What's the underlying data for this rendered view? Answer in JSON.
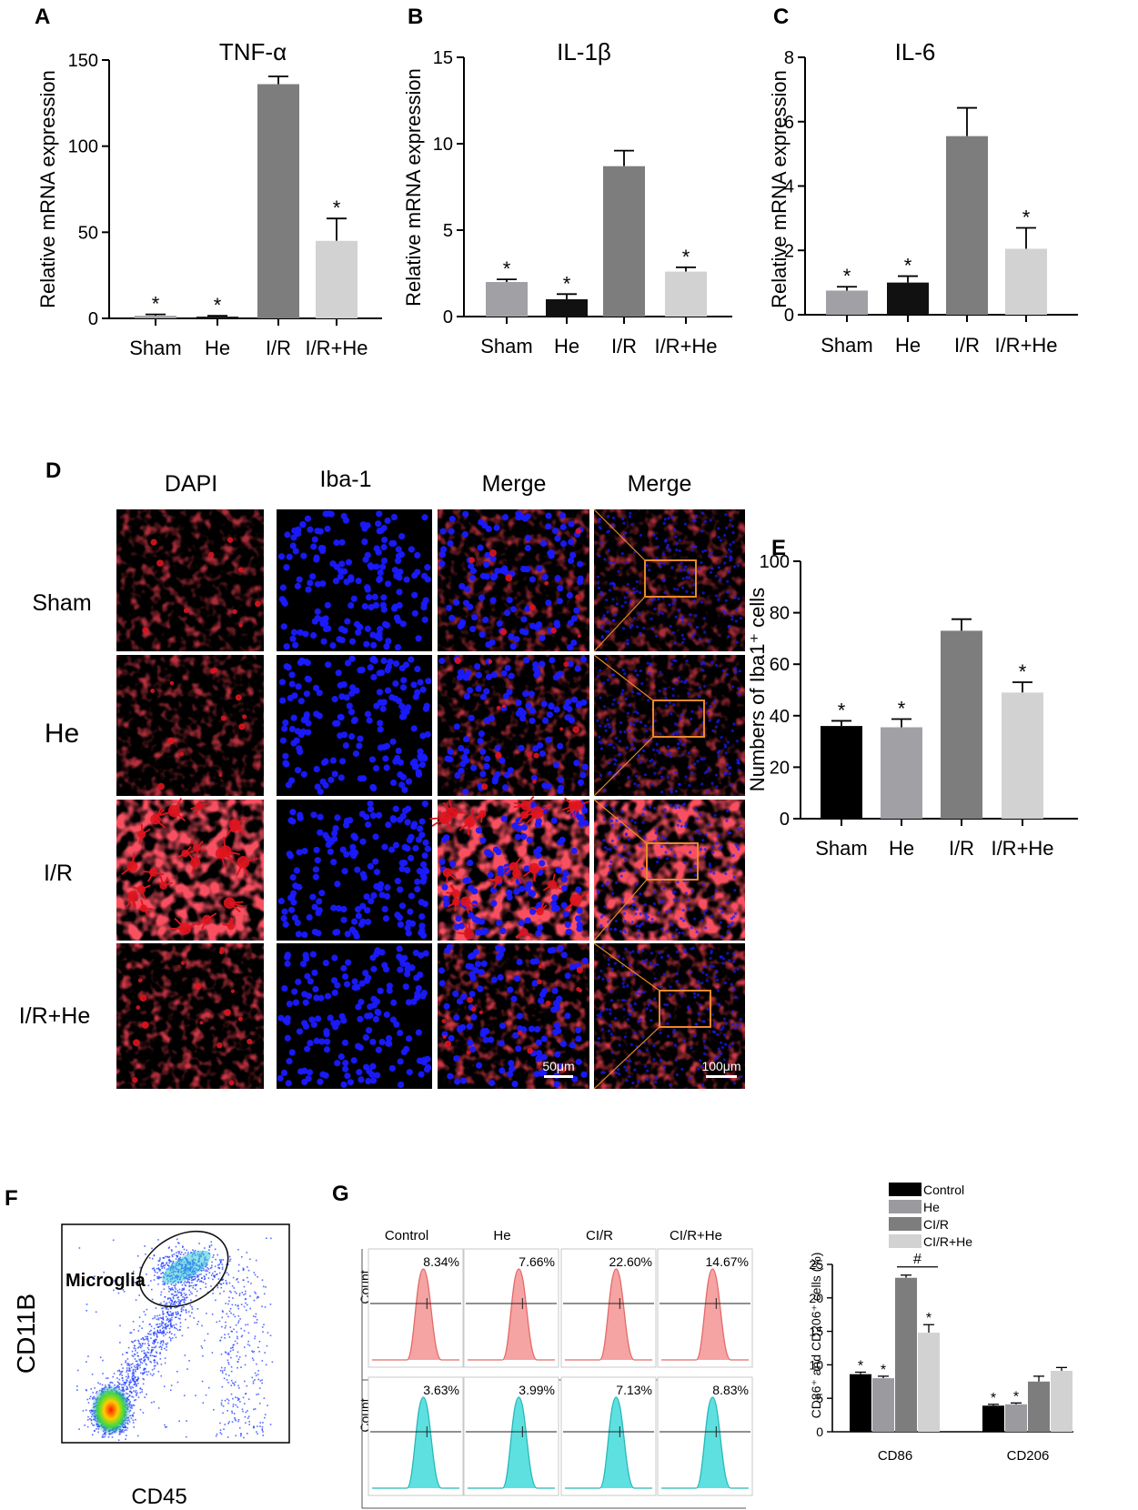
{
  "panel_letters": [
    "A",
    "B",
    "C",
    "D",
    "E",
    "F",
    "G"
  ],
  "colors": {
    "black_bar": "#000000",
    "mid_gray_bar": "#9a9a9f",
    "dark_gray_bar": "#7d7d7d",
    "light_gray_bar": "#d2d2d2",
    "micro_red": "#e0141e",
    "nucleus_blue": "#1a1aff",
    "box_orange": "#e8892b",
    "hist_pink": "#f6a3a3",
    "hist_cyan": "#5fe0e0"
  },
  "microscopy": {
    "columns": [
      "DAPI",
      "Iba-1",
      "Merge",
      "Merge"
    ],
    "rows": [
      "Sham",
      "He",
      "I/R",
      "I/R+He"
    ],
    "scalebars": [
      "50μm",
      "100μm"
    ]
  },
  "flow": {
    "gate_label": "Microglia",
    "xlabel": "CD45",
    "ylabel": "CD11B"
  },
  "histograms": {
    "groups": [
      "Control",
      "He",
      "CI/R",
      "CI/R+He"
    ],
    "ylabel": "Count",
    "rows": [
      {
        "marker": "CD86",
        "percents": [
          "8.34%",
          "7.66%",
          "22.60%",
          "14.67%"
        ]
      },
      {
        "marker": "CD206",
        "percents": [
          "3.63%",
          "3.99%",
          "7.13%",
          "8.83%"
        ]
      }
    ]
  },
  "chart_data": [
    {
      "id": "A",
      "type": "bar",
      "title": "TNF-α",
      "xlabel": "",
      "ylabel": "Relative mRNA expression",
      "categories": [
        "Sham",
        "He",
        "I/R",
        "I/R+He"
      ],
      "values": [
        1.5,
        1.0,
        136,
        45
      ],
      "errors": [
        0.8,
        0.5,
        4.5,
        13
      ],
      "colors": [
        "#a0a0a5",
        "#111111",
        "#7d7d7d",
        "#d2d2d2"
      ],
      "significance": [
        "*",
        "*",
        "",
        "*"
      ],
      "ylim": [
        0,
        150
      ],
      "yticks": [
        "0",
        "50",
        "100",
        "150"
      ]
    },
    {
      "id": "B",
      "type": "bar",
      "title": "IL-1β",
      "xlabel": "",
      "ylabel": "Relative mRNA expression",
      "categories": [
        "Sham",
        "He",
        "I/R",
        "I/R+He"
      ],
      "values": [
        2.0,
        1.0,
        8.7,
        2.6
      ],
      "errors": [
        0.15,
        0.3,
        0.9,
        0.25
      ],
      "colors": [
        "#a0a0a5",
        "#111111",
        "#7d7d7d",
        "#d2d2d2"
      ],
      "significance": [
        "*",
        "*",
        "",
        "*"
      ],
      "ylim": [
        0,
        15
      ],
      "yticks": [
        "0",
        "5",
        "10",
        "15"
      ]
    },
    {
      "id": "C",
      "type": "bar",
      "title": "IL-6",
      "xlabel": "",
      "ylabel": "Relative mRNA expression",
      "categories": [
        "Sham",
        "He",
        "I/R",
        "I/R+He"
      ],
      "values": [
        0.75,
        1.0,
        5.55,
        2.05
      ],
      "errors": [
        0.12,
        0.2,
        0.88,
        0.65
      ],
      "colors": [
        "#a0a0a5",
        "#111111",
        "#7d7d7d",
        "#d2d2d2"
      ],
      "significance": [
        "*",
        "*",
        "",
        "*"
      ],
      "ylim": [
        0,
        8
      ],
      "yticks": [
        "0",
        "2",
        "4",
        "6",
        "8"
      ]
    },
    {
      "id": "E",
      "type": "bar",
      "title": "",
      "xlabel": "",
      "ylabel": "Numbers of Iba1⁺ cells",
      "categories": [
        "Sham",
        "He",
        "I/R",
        "I/R+He"
      ],
      "values": [
        36,
        35.5,
        73,
        49
      ],
      "errors": [
        2.0,
        3.2,
        4.5,
        4.0
      ],
      "colors": [
        "#000000",
        "#a0a0a5",
        "#7d7d7d",
        "#d2d2d2"
      ],
      "significance": [
        "*",
        "*",
        "",
        "*"
      ],
      "ylim": [
        0,
        100
      ],
      "yticks": [
        "0",
        "20",
        "40",
        "60",
        "80",
        "100"
      ]
    },
    {
      "id": "G-bar",
      "type": "bar",
      "title": "",
      "xlabel": "",
      "ylabel": "CD86⁺ and CD206⁺ cells (%)",
      "categories": [
        "CD86",
        "CD206"
      ],
      "series": [
        {
          "name": "Control",
          "values": [
            8.6,
            3.9
          ],
          "errors": [
            0.3,
            0.2
          ],
          "color": "#000000",
          "significance": [
            "*",
            "*"
          ]
        },
        {
          "name": "He",
          "values": [
            8.0,
            4.1
          ],
          "errors": [
            0.3,
            0.2
          ],
          "color": "#9a9a9f",
          "significance": [
            "*",
            "*"
          ]
        },
        {
          "name": "CI/R",
          "values": [
            23.0,
            7.5
          ],
          "errors": [
            0.4,
            0.8
          ],
          "color": "#7d7d7d",
          "significance": [
            "",
            ""
          ]
        },
        {
          "name": "CI/R+He",
          "values": [
            14.8,
            9.1
          ],
          "errors": [
            1.2,
            0.5
          ],
          "color": "#d2d2d2",
          "significance": [
            "*",
            ""
          ]
        }
      ],
      "annotations": [
        "#"
      ],
      "ylim": [
        0,
        25
      ],
      "yticks": [
        "0",
        "5",
        "10",
        "15",
        "20",
        "25"
      ]
    }
  ]
}
